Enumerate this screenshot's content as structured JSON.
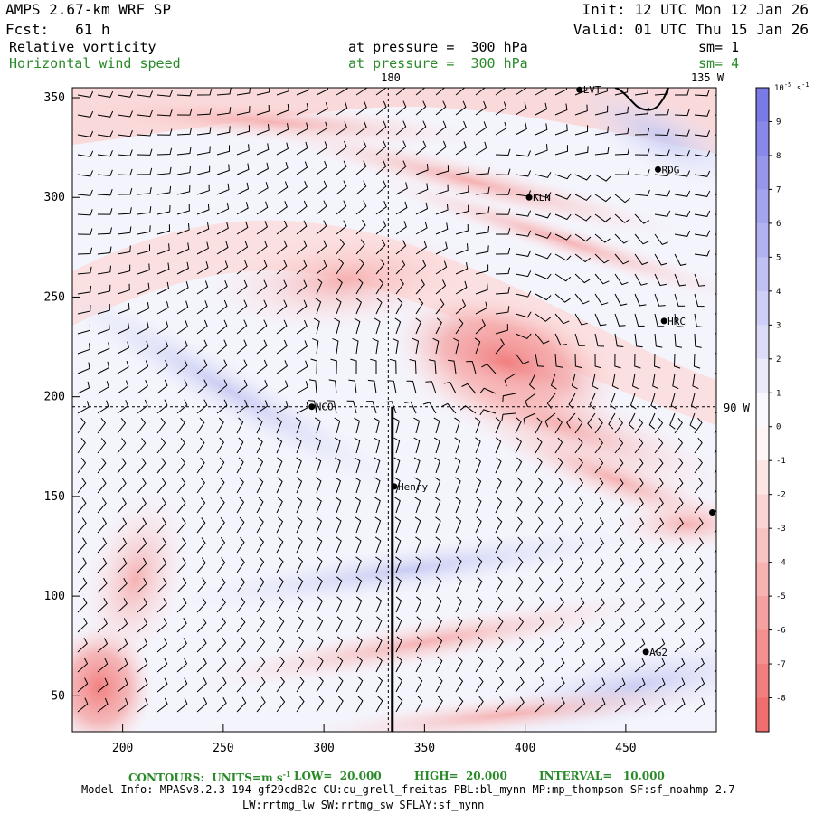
{
  "header": {
    "model": "AMPS 2.67-km WRF SP",
    "fcst": "Fcst:   61 h",
    "init": "Init: 12 UTC Mon 12 Jan 26",
    "valid": "Valid: 01 UTC Thu 15 Jan 26",
    "field1": "Relative vorticity",
    "field2": "Horizontal wind speed",
    "level1": "at pressure =  300 hPa",
    "level2": "at pressure =  300 hPa",
    "sm1": "sm= 1",
    "sm2": "sm= 4"
  },
  "footer": {
    "contours": "CONTOURS:  UNITS=m s",
    "contours_exp": "-1",
    "low": "LOW=  20.000",
    "high": "HIGH=  20.000",
    "interval": "INTERVAL=   10.000",
    "model_info": "Model Info: MPASv8.2.3-194-gf29cd82c CU:cu_grell_freitas PBL:bl_mynn MP:mp_thompson SF:sf_noahmp 2.7",
    "physics": "LW:rrtmg_lw SW:rrtmg_sw SFLAY:sf_mynn"
  },
  "colorbar": {
    "unit_label": "10",
    "unit_exp": "-5",
    "unit_suffix": "s",
    "unit_suffix_exp": "-1",
    "colors": {
      "positive": "#7a7ae6",
      "negative": "#f06e6e",
      "neutral": "#ffffff"
    }
  },
  "map_labels": {
    "lon_180": "180",
    "lon_135w": "135 W",
    "lon_90w": "90 W"
  },
  "colors": {
    "header_green": "#2a8a2a",
    "barb": "#000000"
  },
  "chart_data": {
    "type": "heatmap",
    "title": "Relative vorticity / Horizontal wind speed at 300 hPa",
    "xlim": [
      175,
      495
    ],
    "ylim": [
      32,
      355
    ],
    "x_ticks": [
      200,
      250,
      300,
      350,
      400,
      450
    ],
    "y_ticks": [
      50,
      100,
      150,
      200,
      250,
      300,
      350
    ],
    "colorbar_ticks": [
      9,
      8,
      7,
      6,
      5,
      4,
      3,
      2,
      1,
      0,
      -1,
      -2,
      -3,
      -4,
      -5,
      -6,
      -7,
      -8
    ],
    "colorbar_range": [
      -9,
      10
    ],
    "stations": [
      {
        "name": "AG2",
        "x": 460,
        "y": 72
      },
      {
        "name": "Henry",
        "x": 335,
        "y": 155
      },
      {
        "name": "NCO",
        "x": 294,
        "y": 195
      },
      {
        "name": "KLN",
        "x": 402,
        "y": 300
      },
      {
        "name": "HRC",
        "x": 469,
        "y": 238
      },
      {
        "name": "RDG",
        "x": 466,
        "y": 314
      },
      {
        "name": "LVT",
        "x": 427,
        "y": 354
      },
      {
        "name": "",
        "x": 493,
        "y": 142
      }
    ],
    "meridian_180_x": 332,
    "lat_90w_y": 195,
    "cross_section": {
      "x": 334,
      "y_from": 32,
      "y_to": 195
    }
  }
}
